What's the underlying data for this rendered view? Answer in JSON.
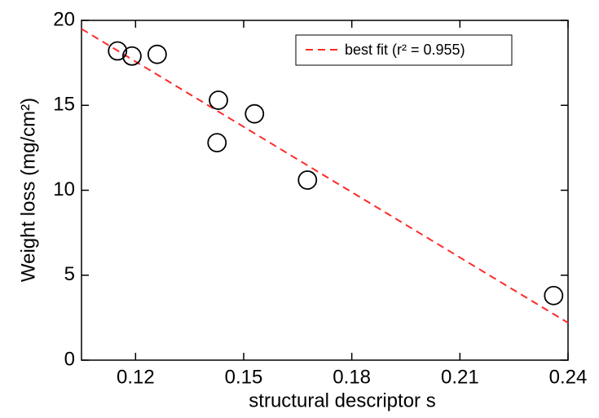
{
  "chart_data": {
    "type": "scatter",
    "x_label": "structural descriptor s",
    "y_label": "Weight loss (mg/cm²)",
    "x": [
      0.115,
      0.119,
      0.126,
      0.143,
      0.1426,
      0.153,
      0.1677,
      0.236
    ],
    "values": [
      18.2,
      17.9,
      18.0,
      15.3,
      12.8,
      14.5,
      10.6,
      3.8
    ],
    "color": "#000000",
    "fit": {
      "name": "best fit (r² = 0.955)",
      "color": "#ff2a2a",
      "x": [
        0.105,
        0.24
      ],
      "values": [
        19.5,
        2.2
      ]
    },
    "xlim": [
      0.105,
      0.24
    ],
    "xticks": [
      0.12,
      0.15,
      0.18,
      0.21,
      0.24
    ],
    "ylim": [
      0,
      20
    ],
    "yticks": [
      0,
      5,
      10,
      15,
      20
    ],
    "legend": "upper-right"
  }
}
